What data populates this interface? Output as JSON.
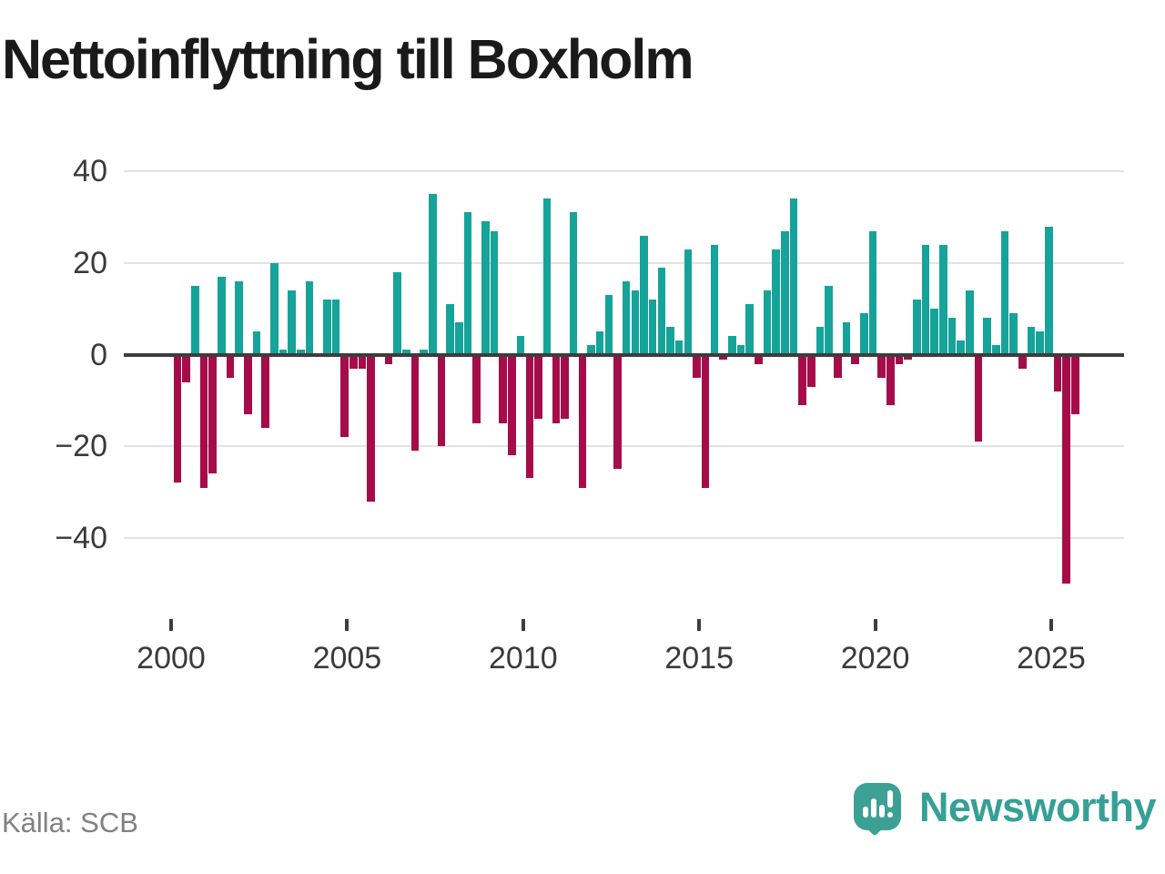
{
  "header": {
    "title": "Nettoinflyttning till Boxholm"
  },
  "footer": {
    "source": "Källa: SCB",
    "logo_text": "Newsworthy"
  },
  "chart_data": {
    "type": "bar",
    "title": "Nettoinflyttning till Boxholm",
    "frequency": "quarterly",
    "start_period": "2000 Q1",
    "end_period": "2025 Q3",
    "grid": "horizontal",
    "legend": "none",
    "ylim": [
      -52,
      42
    ],
    "y_tick_values": [
      40,
      20,
      0,
      -20,
      -40
    ],
    "y_tick_labels": [
      "40",
      "20",
      "0",
      "−20",
      "−40"
    ],
    "x_tick_years": [
      2000,
      2005,
      2010,
      2015,
      2020,
      2025
    ],
    "x_tick_labels": [
      "2000",
      "2005",
      "2010",
      "2015",
      "2020",
      "2025"
    ],
    "colors": {
      "positive": "#16a39a",
      "negative": "#a60c4a",
      "zero_line": "#3d3d3d",
      "gridline": "#e2e2e2",
      "tick_text": "#3a3a3a"
    },
    "values": [
      -28,
      -6,
      15,
      -29,
      -26,
      17,
      -5,
      16,
      -13,
      5,
      -16,
      20,
      1,
      14,
      1,
      16,
      0,
      12,
      12,
      -18,
      -3,
      -3,
      -32,
      0,
      -2,
      18,
      1,
      -21,
      1,
      35,
      -20,
      11,
      7,
      31,
      -15,
      29,
      27,
      -15,
      -22,
      4,
      -27,
      -14,
      34,
      -15,
      -14,
      31,
      -29,
      2,
      5,
      13,
      -25,
      16,
      14,
      26,
      12,
      19,
      6,
      3,
      23,
      -5,
      -29,
      24,
      -1,
      4,
      2,
      11,
      -2,
      14,
      23,
      27,
      34,
      -11,
      -7,
      6,
      15,
      -5,
      7,
      -2,
      9,
      27,
      -5,
      -11,
      -2,
      -1,
      12,
      24,
      10,
      24,
      8,
      3,
      14,
      -19,
      8,
      2,
      27,
      9,
      -3,
      6,
      5,
      28,
      -8,
      -50,
      -13
    ]
  }
}
